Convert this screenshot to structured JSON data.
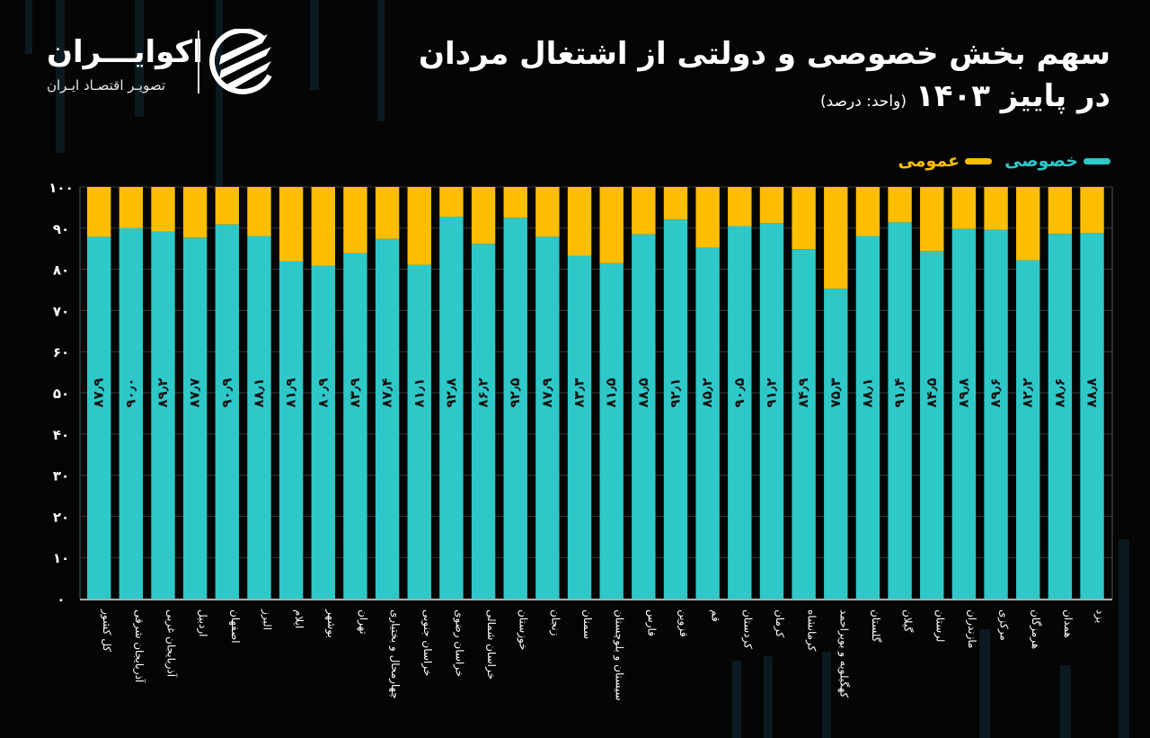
{
  "brand": {
    "name": "اکوایـــران",
    "subtitle": "تصویـر اقتصـاد ایـران"
  },
  "header": {
    "title_line1": "سهم بخش خصوصی و دولتی از اشتغال مردان",
    "title_line2": "در پاییز ۱۴۰۳",
    "unit": "(واحد: درصد)"
  },
  "legend": {
    "private_label": "خصوصی",
    "public_label": "عمومی"
  },
  "colors": {
    "private": "#2ec8c9",
    "public": "#fdbe00",
    "background": "#050505"
  },
  "chart_data": {
    "type": "bar",
    "stacked": true,
    "title": "سهم بخش خصوصی و دولتی از اشتغال مردان در پاییز ۱۴۰۳",
    "ylabel": "(واحد: درصد)",
    "ylim": [
      0,
      100
    ],
    "yticks": [
      0,
      10,
      20,
      30,
      40,
      50,
      60,
      70,
      80,
      90,
      100
    ],
    "ytick_labels": [
      "۰",
      "۱۰",
      "۲۰",
      "۳۰",
      "۴۰",
      "۵۰",
      "۶۰",
      "۷۰",
      "۸۰",
      "۹۰",
      "۱۰۰"
    ],
    "grid": true,
    "legend_position": "top-right",
    "categories": [
      "کل کشور",
      "آذربایجان شرقی",
      "آذربایجان غربی",
      "اردبیل",
      "اصفهان",
      "البرز",
      "ایلام",
      "بوشهر",
      "تهران",
      "چهارمحال و بختیاری",
      "خراسان جنوبی",
      "خراسان رضوی",
      "خراسان شمالی",
      "خوزستان",
      "زنجان",
      "سمنان",
      "سیستان و بلوچستان",
      "فارس",
      "قزوین",
      "قم",
      "کردستان",
      "کرمان",
      "کرمانشاه",
      "کهگیلویه و بویراحمد",
      "گلستان",
      "گیلان",
      "لرستان",
      "مازندران",
      "مرکزی",
      "هرمزگان",
      "همدان",
      "یزد"
    ],
    "series": [
      {
        "name": "خصوصی",
        "values": [
          87.9,
          90.0,
          89.2,
          87.7,
          90.9,
          88.1,
          81.9,
          80.9,
          83.9,
          87.4,
          81.1,
          92.8,
          86.2,
          92.5,
          87.9,
          83.3,
          81.5,
          88.5,
          92.1,
          85.2,
          90.5,
          91.2,
          84.9,
          75.3,
          88.1,
          91.4,
          84.5,
          89.8,
          89.6,
          82.2,
          88.6,
          88.8
        ]
      },
      {
        "name": "عمومی",
        "values": [
          12.1,
          10.0,
          10.8,
          12.3,
          9.1,
          11.9,
          18.1,
          19.1,
          16.1,
          12.6,
          18.9,
          7.2,
          13.8,
          7.5,
          12.1,
          16.7,
          18.5,
          11.5,
          7.9,
          14.8,
          9.5,
          8.8,
          15.1,
          24.7,
          11.9,
          8.6,
          15.5,
          10.2,
          10.4,
          17.8,
          11.4,
          11.2
        ]
      }
    ],
    "data_labels": [
      "۸۷٫۹",
      "۹۰٫۰",
      "۸۹٫۲",
      "۸۷٫۷",
      "۹۰٫۹",
      "۸۸٫۱",
      "۸۱٫۹",
      "۸۰٫۹",
      "۸۳٫۹",
      "۸۷٫۴",
      "۸۱٫۱",
      "۹۲٫۸",
      "۸۶٫۲",
      "۹۲٫۵",
      "۸۷٫۹",
      "۸۳٫۳",
      "۸۱٫۵",
      "۸۸٫۵",
      "۹۲٫۱",
      "۸۵٫۲",
      "۹۰٫۵",
      "۹۱٫۲",
      "۸۴٫۹",
      "۷۵٫۳",
      "۸۸٫۱",
      "۹۱٫۴",
      "۸۴٫۵",
      "۸۹٫۸",
      "۸۹٫۶",
      "۸۲٫۲",
      "۸۸٫۶",
      "۸۸٫۸"
    ]
  }
}
